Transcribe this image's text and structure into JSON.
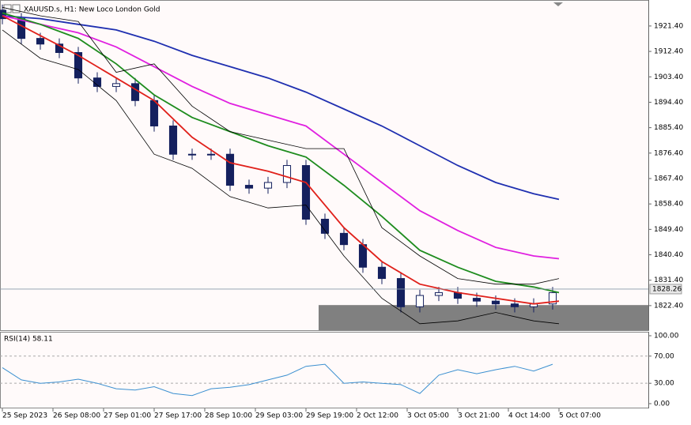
{
  "chart_data": [
    {
      "type": "candlestick",
      "title": "XAUUSD.s, H1:  New Loco London Gold",
      "x": [
        0,
        6,
        12,
        18,
        24,
        30,
        36,
        42,
        48,
        54,
        60,
        66,
        72,
        78,
        84,
        90,
        96,
        102,
        108,
        114,
        120,
        126,
        132,
        138,
        144,
        150,
        156,
        162,
        168,
        174
      ],
      "open": [
        1927,
        1924,
        1917,
        1915,
        1912,
        1903,
        1900,
        1901,
        1895,
        1886,
        1876,
        1876,
        1876,
        1865,
        1864,
        1866,
        1872,
        1853,
        1848,
        1844,
        1836,
        1832,
        1822,
        1826,
        1827,
        1825,
        1824,
        1823,
        1822,
        1823
      ],
      "high": [
        1929,
        1926,
        1919,
        1917,
        1914,
        1905,
        1903,
        1903,
        1897,
        1888,
        1878,
        1878,
        1878,
        1867,
        1868,
        1874,
        1874,
        1855,
        1850,
        1846,
        1838,
        1834,
        1828,
        1829,
        1829,
        1827,
        1826,
        1825,
        1825,
        1829
      ],
      "low": [
        1922,
        1915,
        1913,
        1910,
        1901,
        1898,
        1898,
        1893,
        1884,
        1874,
        1874,
        1874,
        1863,
        1862,
        1862,
        1864,
        1851,
        1846,
        1842,
        1834,
        1830,
        1820,
        1820,
        1824,
        1823,
        1822,
        1821,
        1820,
        1820,
        1821
      ],
      "close": [
        1924,
        1917,
        1915,
        1912,
        1903,
        1900,
        1901,
        1895,
        1886,
        1876,
        1876,
        1876,
        1865,
        1864,
        1866,
        1872,
        1853,
        1848,
        1844,
        1836,
        1832,
        1822,
        1826,
        1827,
        1825,
        1824,
        1823,
        1822,
        1823,
        1827
      ],
      "color": "#14205e",
      "series": [
        {
          "color": "#1f2fb0",
          "x": [
            0,
            12,
            24,
            36,
            48,
            60,
            72,
            84,
            96,
            108,
            120,
            132,
            144,
            156,
            168,
            176
          ],
          "values": [
            1925,
            1924,
            1922,
            1920,
            1916,
            1911,
            1907,
            1903,
            1898,
            1892,
            1886,
            1879,
            1872,
            1866,
            1862,
            1860
          ]
        },
        {
          "color": "#e020e0",
          "x": [
            0,
            12,
            24,
            36,
            48,
            60,
            72,
            84,
            96,
            108,
            120,
            132,
            144,
            156,
            168,
            176
          ],
          "values": [
            1925,
            1922,
            1919,
            1914,
            1907,
            1900,
            1894,
            1890,
            1886,
            1876,
            1866,
            1856,
            1849,
            1843,
            1840,
            1839
          ]
        },
        {
          "color": "#1e8c1e",
          "x": [
            0,
            12,
            24,
            36,
            48,
            60,
            72,
            84,
            96,
            108,
            120,
            132,
            144,
            156,
            168,
            176
          ],
          "values": [
            1926,
            1922,
            1917,
            1908,
            1897,
            1889,
            1884,
            1879,
            1875,
            1865,
            1854,
            1842,
            1836,
            1831,
            1829,
            1827
          ]
        },
        {
          "color": "#e0201a",
          "x": [
            0,
            12,
            24,
            36,
            48,
            60,
            72,
            84,
            96,
            108,
            120,
            132,
            144,
            156,
            168,
            176
          ],
          "values": [
            1925,
            1918,
            1911,
            1903,
            1895,
            1882,
            1873,
            1870,
            1866,
            1850,
            1838,
            1830,
            1827,
            1825,
            1823,
            1824
          ]
        },
        {
          "color": "#000000",
          "x": [
            0,
            12,
            24,
            36,
            48,
            60,
            72,
            84,
            96,
            108,
            120,
            132,
            144,
            156,
            168,
            176
          ],
          "values": [
            1928,
            1925,
            1923,
            1905,
            1908,
            1893,
            1884,
            1881,
            1878,
            1878,
            1850,
            1840,
            1832,
            1830,
            1830,
            1832
          ]
        },
        {
          "color": "#000000",
          "x": [
            0,
            12,
            24,
            36,
            48,
            60,
            72,
            84,
            96,
            108,
            120,
            132,
            144,
            156,
            168,
            176
          ],
          "values": [
            1920,
            1910,
            1906,
            1895,
            1876,
            1871,
            1861,
            1857,
            1858,
            1840,
            1825,
            1816,
            1817,
            1820,
            1817,
            1816
          ]
        }
      ],
      "last_price": 1828.26,
      "zone": {
        "xstart": 100,
        "ylim": [
          1813.7,
          1822.6
        ],
        "color": "#808080"
      },
      "xlim": [
        -0.75,
        204.25
      ],
      "ylim": [
        1813.7,
        1930.6
      ],
      "yticks": [
        {
          "value": 1921.4,
          "label": "1921.40"
        },
        {
          "value": 1912.4,
          "label": "1912.40"
        },
        {
          "value": 1903.4,
          "label": "1903.40"
        },
        {
          "value": 1894.4,
          "label": "1894.40"
        },
        {
          "value": 1885.4,
          "label": "1885.40"
        },
        {
          "value": 1876.4,
          "label": "1876.40"
        },
        {
          "value": 1867.4,
          "label": "1867.40"
        },
        {
          "value": 1858.4,
          "label": "1858.40"
        },
        {
          "value": 1849.4,
          "label": "1849.40"
        },
        {
          "value": 1840.4,
          "label": "1840.40"
        },
        {
          "value": 1831.4,
          "label": "1831.40"
        },
        {
          "value": 1822.4,
          "label": "1822.40"
        }
      ]
    },
    {
      "type": "line",
      "title": "RSI(14) 58.11",
      "color": "#3a8fd0",
      "x": [
        0,
        6,
        12,
        18,
        24,
        30,
        36,
        42,
        48,
        54,
        60,
        66,
        72,
        78,
        84,
        90,
        96,
        102,
        108,
        114,
        120,
        126,
        132,
        138,
        144,
        150,
        156,
        162,
        168,
        174
      ],
      "values": [
        53,
        35,
        30,
        32,
        36,
        30,
        22,
        20,
        25,
        15,
        12,
        22,
        24,
        28,
        35,
        42,
        55,
        58,
        30,
        32,
        30,
        28,
        15,
        42,
        50,
        44,
        50,
        55,
        48,
        58
      ],
      "levels": [
        70,
        30
      ],
      "xlim": [
        -0.75,
        204.25
      ],
      "ylim": [
        -7,
        105.8
      ],
      "yticks": [
        {
          "value": 100,
          "label": "100.00"
        },
        {
          "value": 70,
          "label": "70.00"
        },
        {
          "value": 30,
          "label": "30.00"
        },
        {
          "value": 0,
          "label": "0.00"
        }
      ],
      "xticks": [
        {
          "value": 0,
          "label": "25 Sep 2023"
        },
        {
          "value": 16,
          "label": "26 Sep 08:00"
        },
        {
          "value": 32,
          "label": "27 Sep 01:00"
        },
        {
          "value": 48,
          "label": "27 Sep 17:00"
        },
        {
          "value": 64,
          "label": "28 Sep 10:00"
        },
        {
          "value": 80,
          "label": "29 Sep 03:00"
        },
        {
          "value": 96,
          "label": "29 Sep 19:00"
        },
        {
          "value": 112,
          "label": "2 Oct 12:00"
        },
        {
          "value": 128,
          "label": "3 Oct 05:00"
        },
        {
          "value": 144,
          "label": "3 Oct 21:00"
        },
        {
          "value": 160,
          "label": "4 Oct 14:00"
        },
        {
          "value": 176,
          "label": "5 Oct 07:00"
        }
      ]
    }
  ]
}
